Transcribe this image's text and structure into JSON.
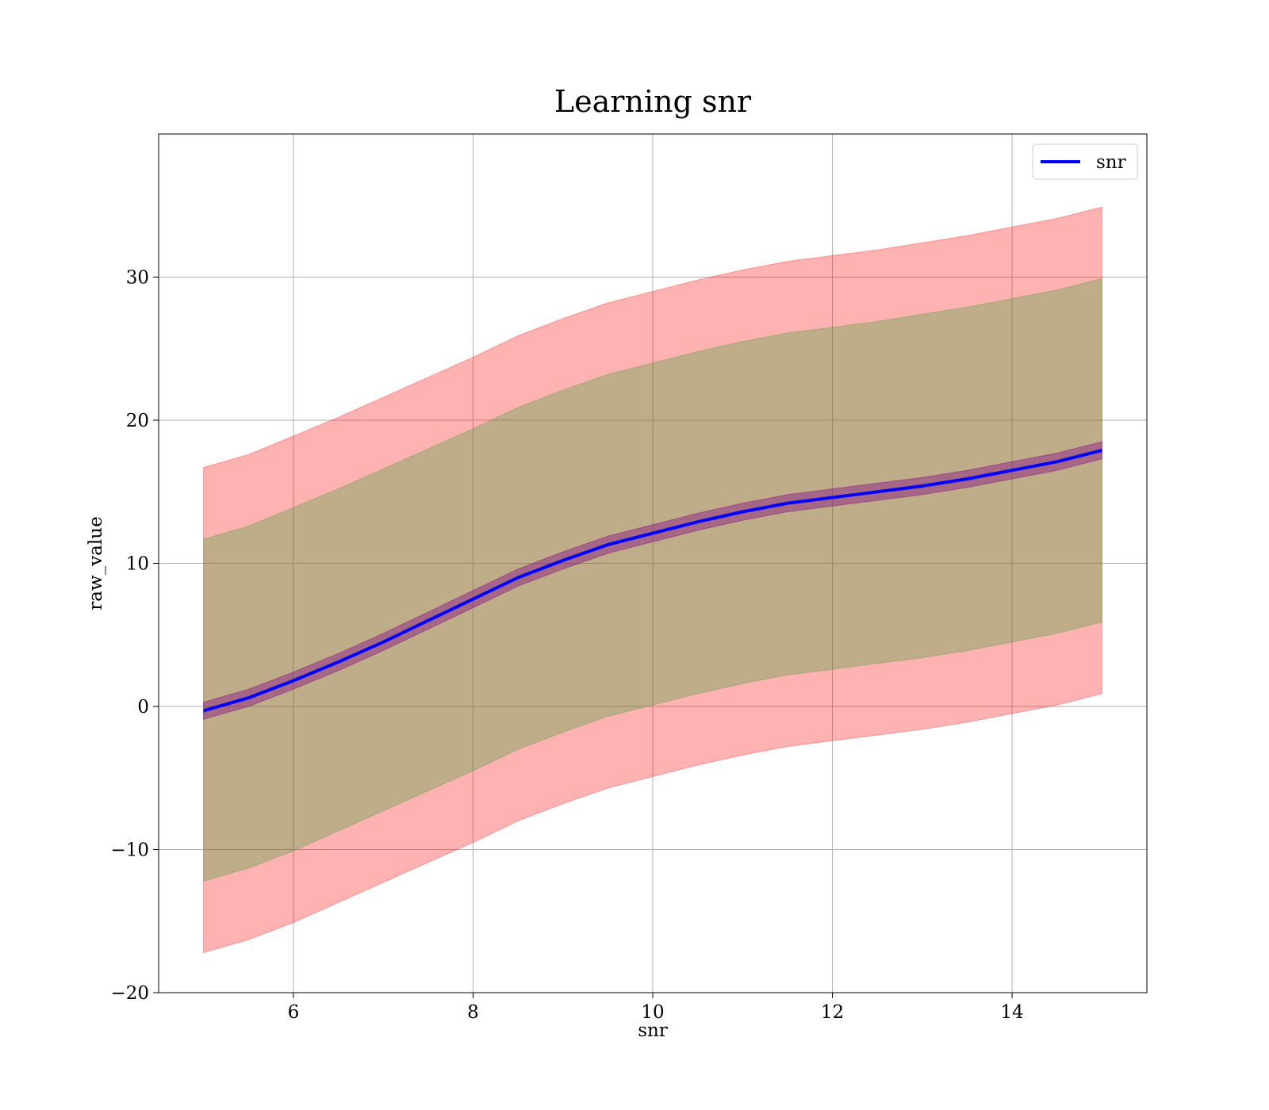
{
  "chart_data": {
    "type": "line",
    "title": "Learning snr",
    "xlabel": "snr",
    "ylabel": "raw_value",
    "xlim": [
      4.5,
      15.5
    ],
    "ylim": [
      -20,
      40
    ],
    "xticks": [
      6,
      8,
      10,
      12,
      14
    ],
    "xtick_labels": [
      "6",
      "8",
      "10",
      "12",
      "14"
    ],
    "yticks": [
      -20,
      -10,
      0,
      10,
      20,
      30
    ],
    "ytick_labels": [
      "−20",
      "−10",
      "0",
      "10",
      "20",
      "30"
    ],
    "grid": true,
    "legend": {
      "placement": "top-right",
      "entries": [
        "snr"
      ]
    },
    "x": [
      5,
      5.5,
      6,
      6.5,
      7,
      7.5,
      8,
      8.5,
      9,
      9.5,
      10,
      10.5,
      11,
      11.5,
      12,
      12.5,
      13,
      13.5,
      14,
      14.5,
      15
    ],
    "series": [
      {
        "name": "snr",
        "color": "#0000ff",
        "values": [
          -0.3,
          0.6,
          1.8,
          3.1,
          4.5,
          6.0,
          7.5,
          9.0,
          10.2,
          11.3,
          12.1,
          12.9,
          13.6,
          14.2,
          14.6,
          15.0,
          15.4,
          15.9,
          16.5,
          17.1,
          17.9
        ]
      }
    ],
    "bands": [
      {
        "role": "2-std",
        "color": "#ff0000",
        "opacity": 0.3,
        "lower": [
          -17.2,
          -16.3,
          -15.1,
          -13.7,
          -12.3,
          -10.9,
          -9.5,
          -8.0,
          -6.8,
          -5.7,
          -4.9,
          -4.1,
          -3.4,
          -2.8,
          -2.4,
          -2.0,
          -1.6,
          -1.1,
          -0.5,
          0.1,
          0.9
        ],
        "upper": [
          16.7,
          17.6,
          18.9,
          20.2,
          21.6,
          23.0,
          24.4,
          25.9,
          27.1,
          28.2,
          29.0,
          29.8,
          30.5,
          31.1,
          31.5,
          31.9,
          32.4,
          32.9,
          33.5,
          34.1,
          34.9
        ]
      },
      {
        "role": "1-std",
        "color": "#2ca02c",
        "opacity": 0.3,
        "lower": [
          -12.2,
          -11.3,
          -10.1,
          -8.7,
          -7.3,
          -5.9,
          -4.5,
          -3.0,
          -1.8,
          -0.7,
          0.1,
          0.9,
          1.6,
          2.2,
          2.6,
          3.0,
          3.4,
          3.9,
          4.5,
          5.1,
          5.9
        ],
        "upper": [
          11.7,
          12.6,
          13.9,
          15.2,
          16.6,
          18.0,
          19.4,
          20.9,
          22.1,
          23.2,
          24.0,
          24.8,
          25.5,
          26.1,
          26.5,
          26.9,
          27.4,
          27.9,
          28.5,
          29.1,
          29.9
        ]
      },
      {
        "role": "error",
        "color": "#800080",
        "opacity": 0.4,
        "lower": [
          -0.9,
          0.0,
          1.2,
          2.5,
          3.9,
          5.4,
          6.9,
          8.4,
          9.6,
          10.7,
          11.5,
          12.3,
          13.0,
          13.6,
          14.0,
          14.4,
          14.8,
          15.3,
          15.9,
          16.5,
          17.3
        ],
        "upper": [
          0.3,
          1.2,
          2.4,
          3.7,
          5.1,
          6.6,
          8.1,
          9.6,
          10.8,
          11.9,
          12.7,
          13.5,
          14.2,
          14.8,
          15.2,
          15.6,
          16.0,
          16.5,
          17.1,
          17.7,
          18.5
        ]
      }
    ]
  }
}
